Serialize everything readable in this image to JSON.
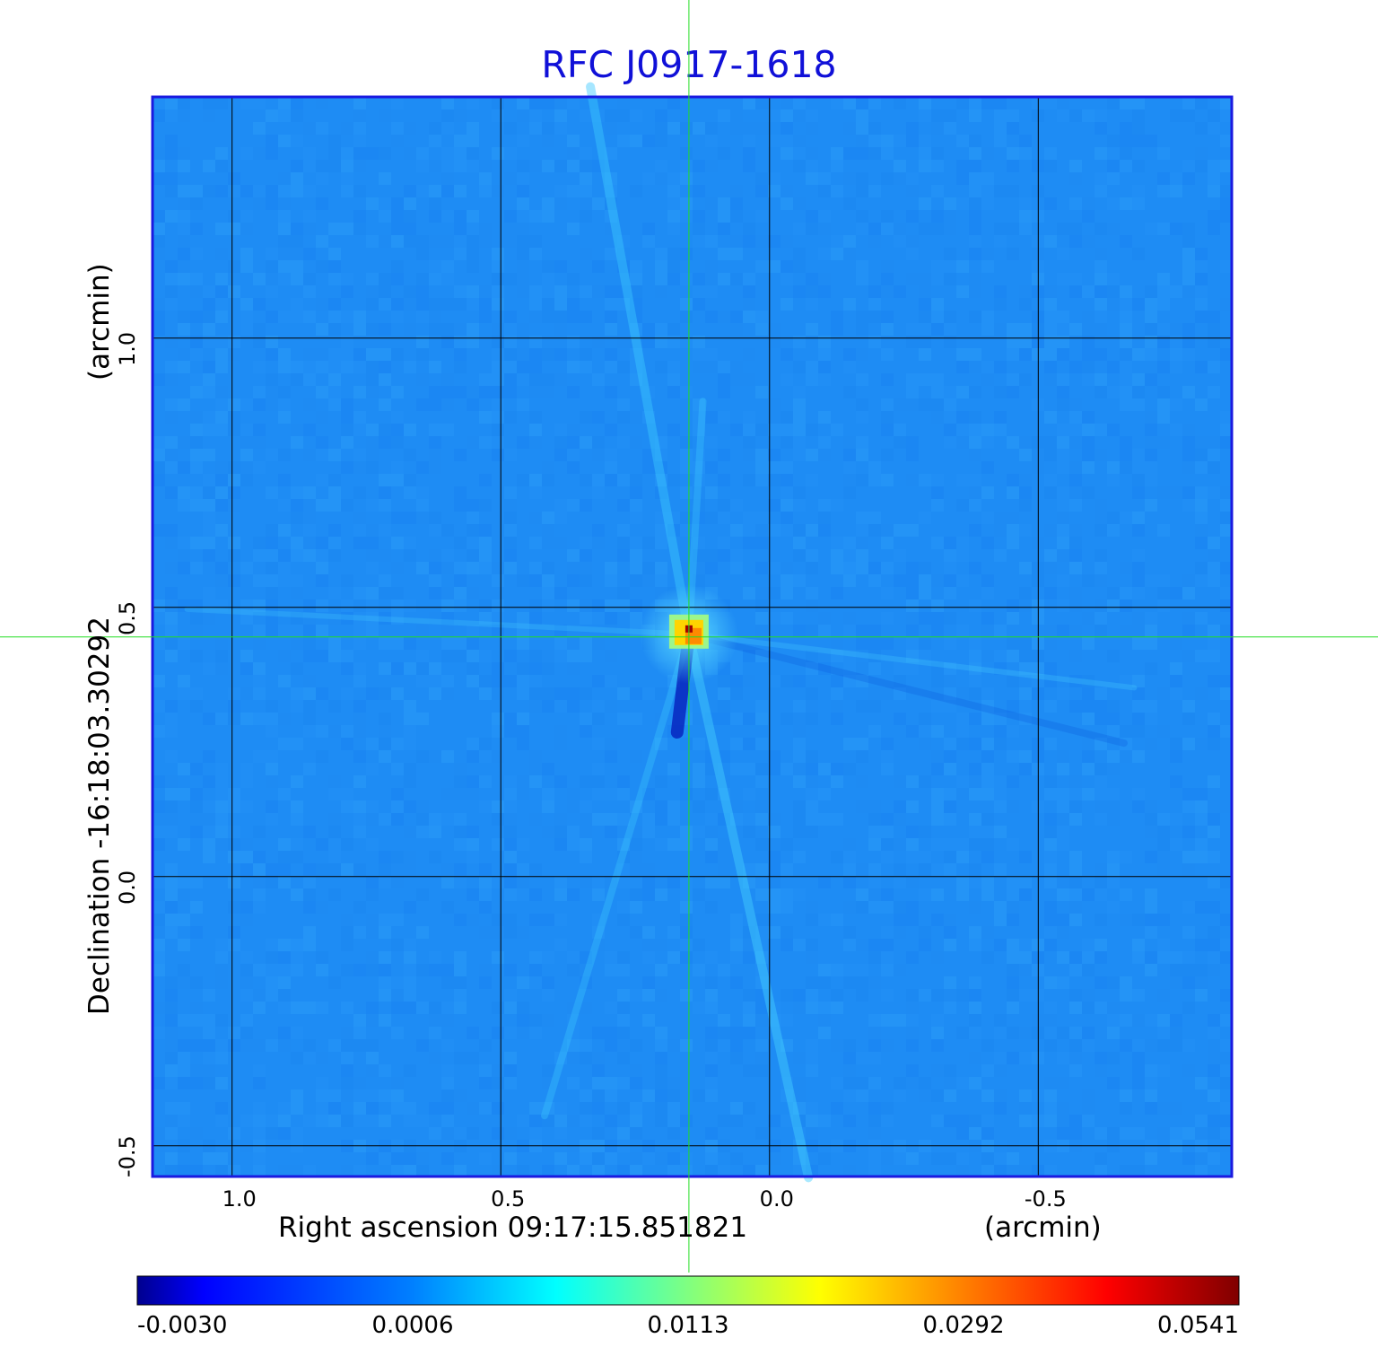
{
  "chart_data": {
    "type": "heatmap",
    "title": "RFC J0917-1618",
    "xlabel": "Right ascension  09:17:15.851821",
    "xunit": "(arcmin)",
    "ylabel": "Declination  -16:18:03.30292",
    "yunit": "(arcmin)",
    "x_ticks": [
      1.0,
      0.5,
      0.0,
      -0.5
    ],
    "x_tick_labels": [
      "1.0",
      "0.5",
      "0.0",
      "-0.5"
    ],
    "y_ticks": [
      1.0,
      0.5,
      0.0,
      -0.5
    ],
    "y_tick_labels": [
      "1.0",
      "0.5",
      "0.0",
      "-0.5"
    ],
    "xlim": [
      1.148,
      -0.86
    ],
    "ylim": [
      -0.557,
      1.448
    ],
    "grid": true,
    "crosshair": {
      "x": 0.15,
      "y": 0.445
    },
    "source_peak": {
      "x": 0.15,
      "y": 0.45,
      "value": 0.0541
    },
    "colorbar": {
      "colormap": "jet",
      "tick_labels": [
        "-0.0030",
        "0.0006",
        "0.0113",
        "0.0292",
        "0.0541"
      ],
      "ticks": [
        -0.003,
        0.0006,
        0.0113,
        0.0292,
        0.0541
      ],
      "range": [
        -0.003,
        0.0541
      ]
    },
    "colors": {
      "title": "#1010d8",
      "frame": "#1a1ae0",
      "crosshair": "#22dd22",
      "grid": "#000000",
      "background_level": "#1e8cf4"
    }
  }
}
